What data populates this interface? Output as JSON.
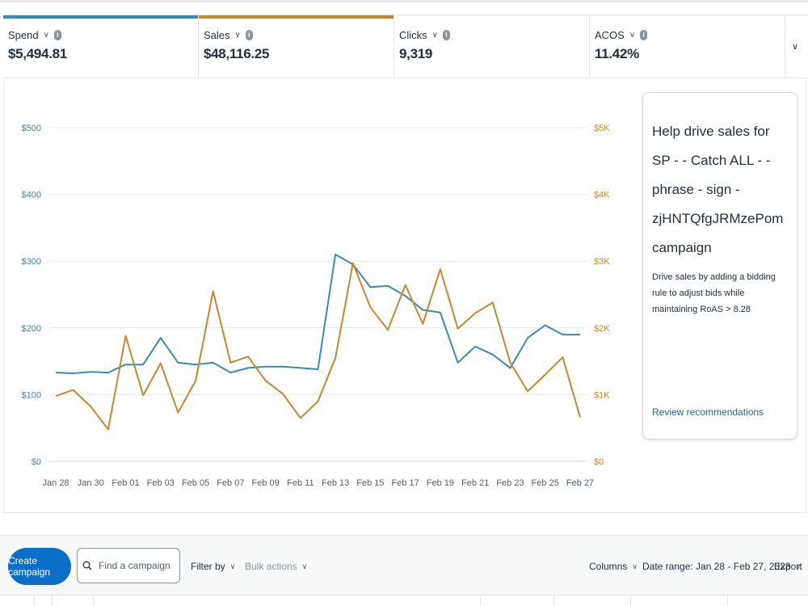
{
  "metrics": [
    {
      "name": "Spend",
      "value": "$5,494.81",
      "color": "#3a8ab1"
    },
    {
      "name": "Sales",
      "value": "$48,116.25",
      "color": "#c9862c"
    },
    {
      "name": "Clicks",
      "value": "9,319",
      "color": ""
    },
    {
      "name": "ACOS",
      "value": "11.42%",
      "color": ""
    }
  ],
  "expand_icon": "chevron-down-icon",
  "chart_data": {
    "type": "line",
    "x": [
      "Jan 28",
      "Jan 29",
      "Jan 30",
      "Jan 31",
      "Feb 01",
      "Feb 02",
      "Feb 03",
      "Feb 04",
      "Feb 05",
      "Feb 06",
      "Feb 07",
      "Feb 08",
      "Feb 09",
      "Feb 10",
      "Feb 11",
      "Feb 12",
      "Feb 13",
      "Feb 14",
      "Feb 15",
      "Feb 16",
      "Feb 17",
      "Feb 18",
      "Feb 19",
      "Feb 20",
      "Feb 21",
      "Feb 22",
      "Feb 23",
      "Feb 24",
      "Feb 25",
      "Feb 26",
      "Feb 27"
    ],
    "x_tick_labels": [
      "Jan 28",
      "Jan 30",
      "Feb 01",
      "Feb 03",
      "Feb 05",
      "Feb 07",
      "Feb 09",
      "Feb 11",
      "Feb 13",
      "Feb 15",
      "Feb 17",
      "Feb 19",
      "Feb 21",
      "Feb 23",
      "Feb 25",
      "Feb 27"
    ],
    "y_left_ticks": [
      "$0",
      "$100",
      "$200",
      "$300",
      "$400",
      "$500"
    ],
    "y_right_ticks": [
      "$0",
      "$1K",
      "$2K",
      "$3K",
      "$4K",
      "$5K"
    ],
    "y_left_lim": [
      0,
      500
    ],
    "y_right_lim": [
      0,
      5000
    ],
    "grid": true,
    "series": [
      {
        "name": "Spend",
        "axis": "left",
        "color": "#3a8ab1",
        "values": [
          133,
          132,
          134,
          133,
          145,
          145,
          185,
          148,
          145,
          148,
          133,
          140,
          142,
          142,
          140,
          138,
          310,
          295,
          261,
          263,
          248,
          227,
          223,
          148,
          172,
          160,
          140,
          185,
          204,
          190,
          190
        ]
      },
      {
        "name": "Sales",
        "axis": "right",
        "color": "#c9862c",
        "values": [
          980,
          1070,
          820,
          480,
          1880,
          990,
          1470,
          730,
          1210,
          2550,
          1480,
          1570,
          1210,
          1010,
          650,
          900,
          1550,
          2970,
          2310,
          1970,
          2640,
          2060,
          2880,
          1990,
          2220,
          2380,
          1480,
          1050,
          1300,
          1560,
          660
        ]
      }
    ]
  },
  "recommendation": {
    "title": "Help drive sales for SP - - Catch ALL - - phrase - sign - zjHNTQfgJRMzePom campaign",
    "description": "Drive sales by adding a bidding rule to adjust bids while maintaining RoAS > 8.28",
    "link": "Review recommendations"
  },
  "toolbar": {
    "create_label": "Create campaign",
    "search_placeholder": "Find a campaign",
    "filter_label": "Filter by",
    "bulk_label": "Bulk actions",
    "columns_label": "Columns",
    "date_range_label": "Date range: Jan 28 - Feb 27, 2023",
    "export_label": "Export"
  }
}
